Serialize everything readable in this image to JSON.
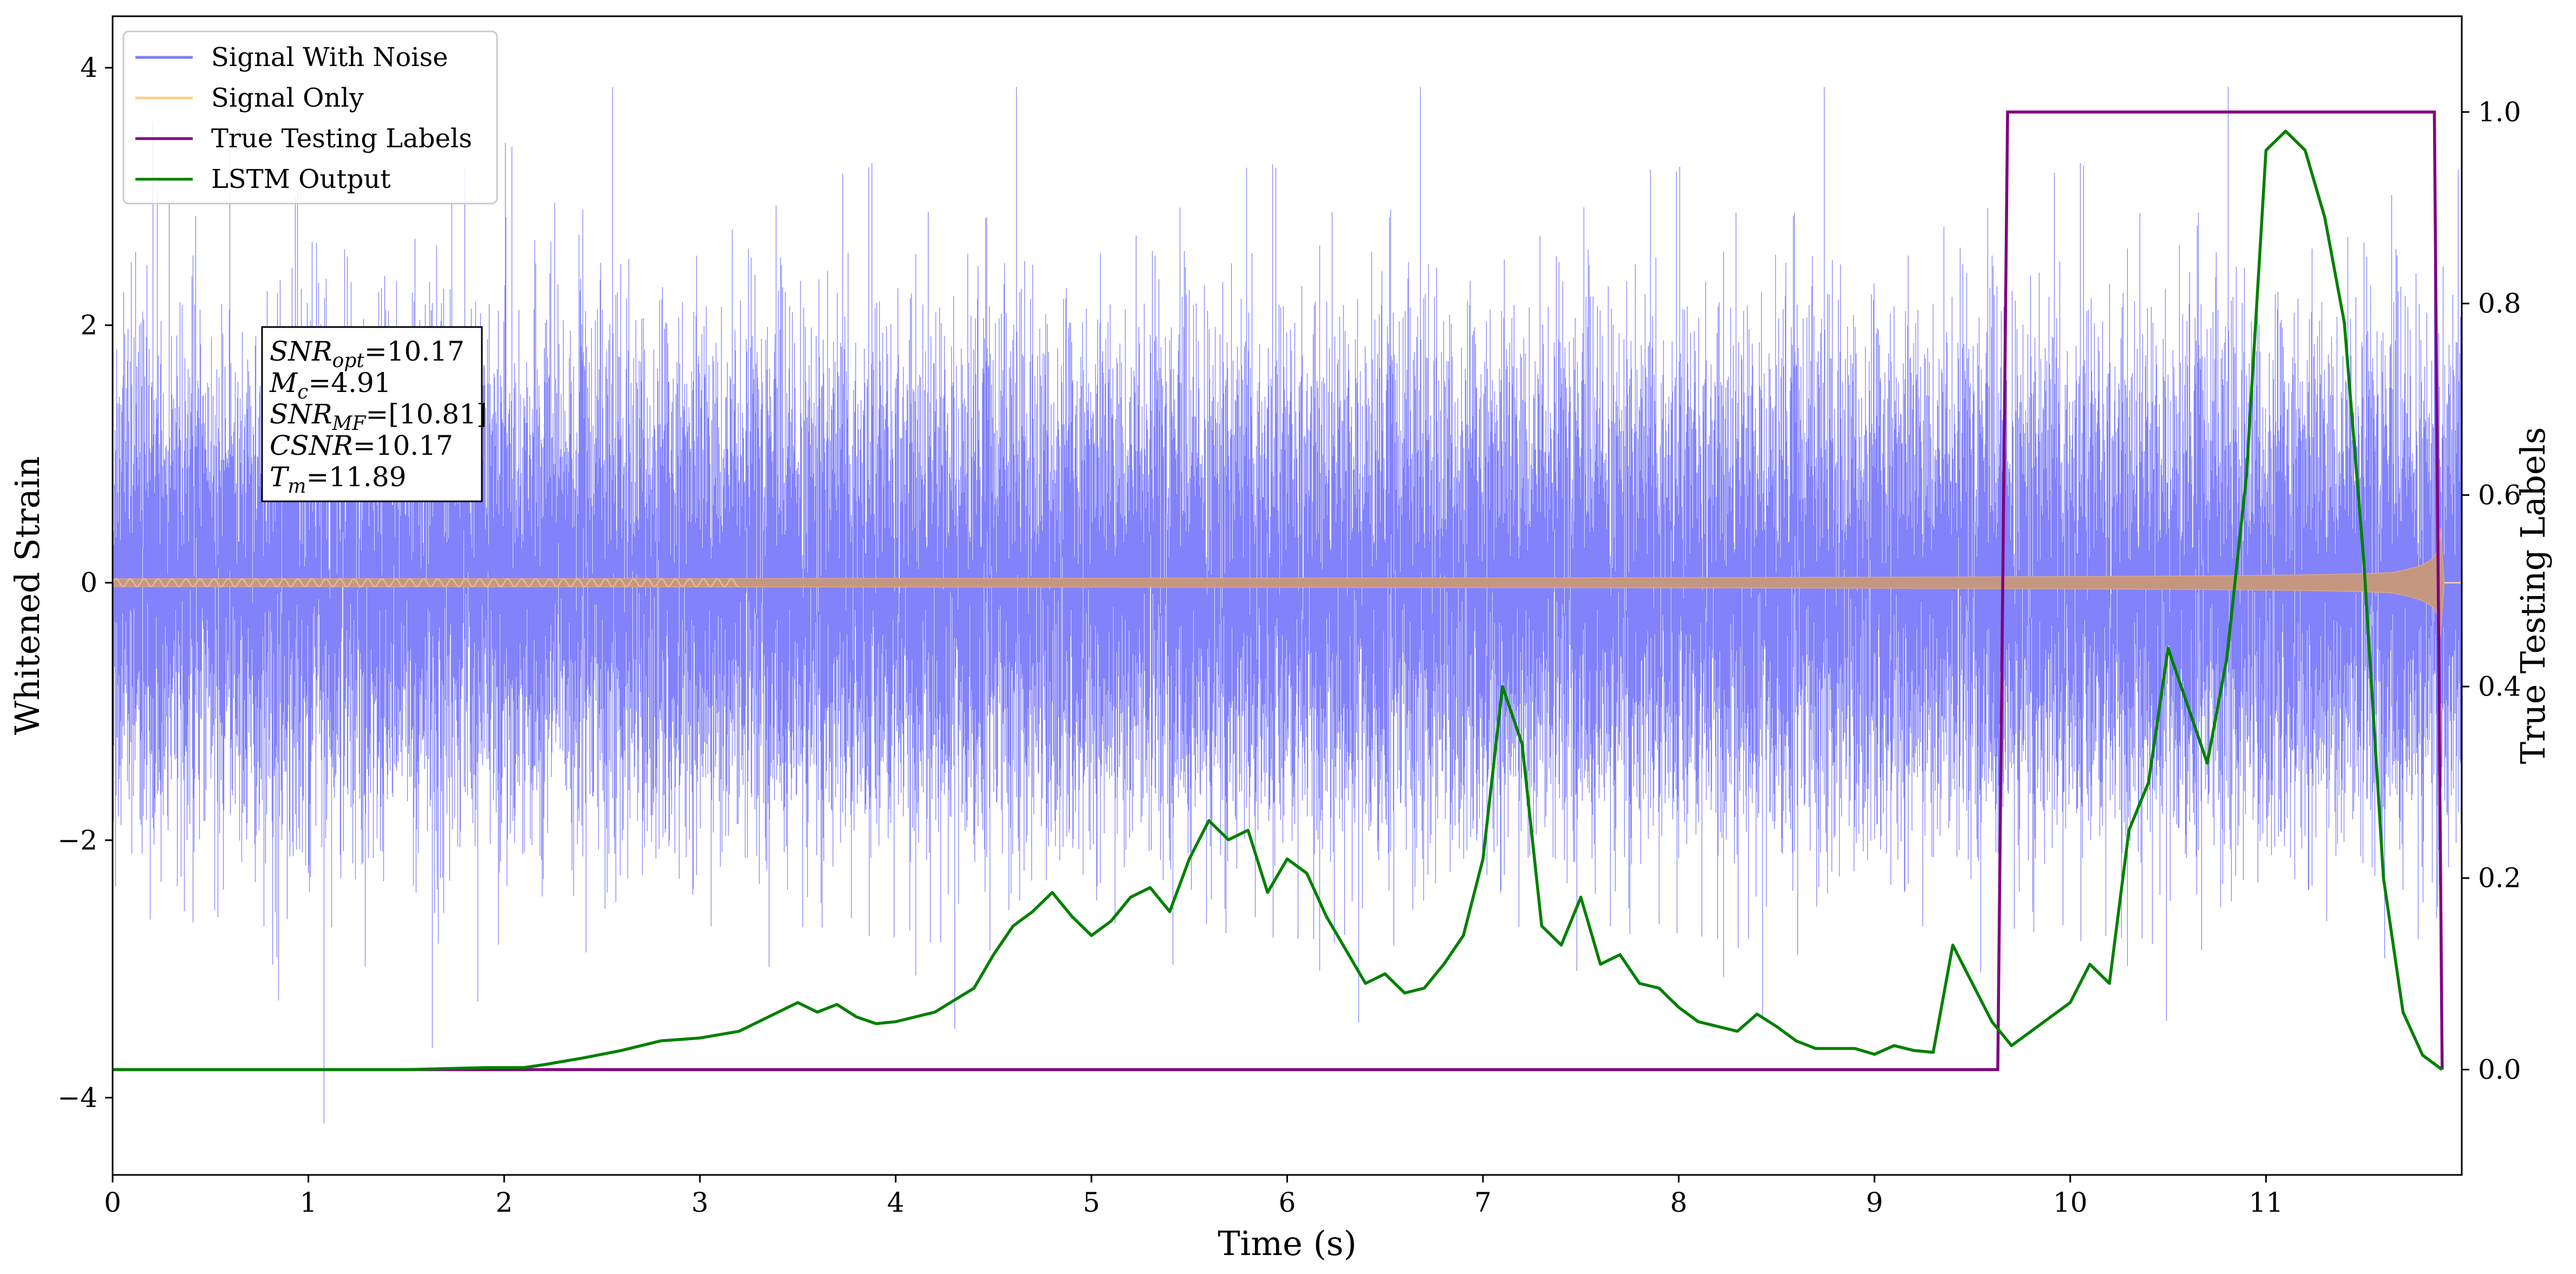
{
  "chart_data": {
    "type": "line",
    "xlabel": "Time (s)",
    "ylabel_left": "Whitened Strain",
    "ylabel_right": "True Testing Labels",
    "xlim": [
      0,
      12.0
    ],
    "ylim_left": [
      -4.6,
      4.4
    ],
    "ylim_right": [
      -0.11,
      1.1
    ],
    "x_ticks": [
      0,
      1,
      2,
      3,
      4,
      5,
      6,
      7,
      8,
      9,
      10,
      11
    ],
    "y_ticks_left": [
      -4,
      -2,
      0,
      2,
      4
    ],
    "y_ticks_left_labels": [
      "−4",
      "−2",
      "0",
      "2",
      "4"
    ],
    "y_ticks_right": [
      0.0,
      0.2,
      0.4,
      0.6,
      0.8,
      1.0
    ],
    "y_ticks_right_labels": [
      "0.0",
      "0.2",
      "0.4",
      "0.6",
      "0.8",
      "1.0"
    ],
    "grid": false,
    "legend_position": "top-left",
    "series": [
      {
        "name": "Signal With Noise",
        "axis": "left",
        "color": "#7b7bfb",
        "style": "dense-noise",
        "stddev": 0.9,
        "peak_max": 3.85,
        "peak_min": -4.2,
        "envelope_amplitude_max": 1.0,
        "merger_time": 11.89
      },
      {
        "name": "Signal Only",
        "axis": "left",
        "color": "#ffcf87",
        "style": "chirp",
        "amplitude_start": 0.03,
        "amplitude_peak": 0.52,
        "merger_time": 11.89
      },
      {
        "name": "True Testing Labels",
        "axis": "right",
        "color": "#800080",
        "x": [
          0,
          9.63,
          9.68,
          11.86,
          11.9
        ],
        "y": [
          0,
          0,
          1,
          1,
          0
        ]
      },
      {
        "name": "LSTM Output",
        "axis": "right",
        "color": "#008000",
        "x": [
          0,
          0.5,
          1.0,
          1.5,
          1.9,
          2.1,
          2.2,
          2.4,
          2.6,
          2.8,
          3.0,
          3.2,
          3.4,
          3.5,
          3.6,
          3.7,
          3.8,
          3.9,
          4.0,
          4.2,
          4.4,
          4.5,
          4.6,
          4.7,
          4.8,
          4.9,
          5.0,
          5.1,
          5.2,
          5.3,
          5.4,
          5.5,
          5.6,
          5.7,
          5.8,
          5.9,
          6.0,
          6.1,
          6.2,
          6.4,
          6.5,
          6.6,
          6.7,
          6.8,
          6.9,
          7.0,
          7.1,
          7.2,
          7.3,
          7.4,
          7.5,
          7.6,
          7.7,
          7.8,
          7.9,
          8.0,
          8.1,
          8.3,
          8.4,
          8.5,
          8.6,
          8.7,
          8.9,
          9.0,
          9.1,
          9.2,
          9.3,
          9.4,
          9.5,
          9.6,
          9.7,
          9.8,
          9.9,
          10.0,
          10.1,
          10.2,
          10.3,
          10.4,
          10.5,
          10.6,
          10.7,
          10.8,
          10.9,
          11.0,
          11.1,
          11.2,
          11.3,
          11.4,
          11.5,
          11.6,
          11.7,
          11.8,
          11.9
        ],
        "y": [
          0.0,
          0.0,
          0.0,
          0.0,
          0.002,
          0.002,
          0.005,
          0.012,
          0.02,
          0.03,
          0.033,
          0.04,
          0.06,
          0.07,
          0.06,
          0.068,
          0.055,
          0.048,
          0.05,
          0.06,
          0.085,
          0.12,
          0.15,
          0.165,
          0.185,
          0.16,
          0.14,
          0.155,
          0.18,
          0.19,
          0.165,
          0.22,
          0.26,
          0.24,
          0.25,
          0.185,
          0.22,
          0.205,
          0.16,
          0.09,
          0.1,
          0.08,
          0.085,
          0.11,
          0.14,
          0.22,
          0.4,
          0.34,
          0.15,
          0.13,
          0.18,
          0.11,
          0.12,
          0.09,
          0.085,
          0.065,
          0.05,
          0.04,
          0.058,
          0.045,
          0.03,
          0.022,
          0.022,
          0.016,
          0.025,
          0.02,
          0.018,
          0.13,
          0.09,
          0.05,
          0.025,
          0.04,
          0.055,
          0.07,
          0.11,
          0.09,
          0.25,
          0.3,
          0.44,
          0.38,
          0.32,
          0.43,
          0.62,
          0.96,
          0.98,
          0.96,
          0.89,
          0.78,
          0.53,
          0.2,
          0.06,
          0.015,
          0.0
        ]
      }
    ],
    "annotation": {
      "lines": [
        {
          "var": "SNR",
          "sub": "opt",
          "value": "=10.17"
        },
        {
          "var": "M",
          "sub": "c",
          "value": "=4.91"
        },
        {
          "var": "SNR",
          "sub": "MF",
          "value": "=[10.81]"
        },
        {
          "var": "CSNR",
          "sub": "",
          "value": "=10.17"
        },
        {
          "var": "T",
          "sub": "m",
          "value": "=11.89"
        }
      ]
    }
  }
}
